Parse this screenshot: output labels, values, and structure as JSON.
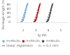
{
  "chart_data": {
    "type": "scatter",
    "xlabel": "lg (N)",
    "ylabel": "Damage length (mm)",
    "xlim": [
      1.5,
      5.5
    ],
    "ylim": [
      -2,
      88
    ],
    "xticks": [
      2,
      3,
      4,
      5
    ],
    "yticks": [
      0,
      20,
      40,
      60,
      80
    ],
    "grid": false,
    "legend": "bottom",
    "series": [
      {
        "name": "e=4e₀/e₀",
        "color": "#6baed6",
        "marker": "square",
        "x": [
          1.9,
          1.95,
          2.0,
          2.02,
          2.05,
          2.08,
          2.1,
          2.12,
          2.15,
          2.18,
          2.2,
          2.22,
          2.25,
          2.27,
          2.3,
          2.32
        ],
        "values": [
          2,
          5,
          9,
          13,
          18,
          23,
          28,
          34,
          40,
          46,
          53,
          59,
          65,
          70,
          75,
          80
        ]
      },
      {
        "name": "e=4e₀/e₀",
        "color": "#cc0000",
        "marker": "square",
        "x": [
          2.9,
          2.95,
          3.0,
          3.02,
          3.05,
          3.08,
          3.1,
          3.12,
          3.15,
          3.18,
          3.2,
          3.22,
          3.25,
          3.27,
          3.3,
          3.32
        ],
        "values": [
          2,
          5,
          9,
          13,
          18,
          23,
          28,
          34,
          40,
          46,
          53,
          59,
          65,
          70,
          75,
          80
        ]
      },
      {
        "name": "e=6e₀/e₀",
        "color": "#404040",
        "marker": "square",
        "x": [
          3.9,
          3.95,
          4.0,
          4.02,
          4.05,
          4.08,
          4.1,
          4.12,
          4.15,
          4.18,
          4.2,
          4.22,
          4.25,
          4.27,
          4.3,
          4.32
        ],
        "values": [
          2,
          5,
          9,
          13,
          18,
          23,
          28,
          34,
          40,
          46,
          53,
          59,
          65,
          70,
          75,
          80
        ]
      },
      {
        "name": "linear regression",
        "type": "line",
        "color": "#555555",
        "line_style": "dashed",
        "x": [
          1.82,
          2.38
        ],
        "values": [
          -2,
          88
        ]
      },
      {
        "type": "line",
        "color": "#555555",
        "line_style": "dashed",
        "x": [
          2.82,
          3.38
        ],
        "values": [
          -2,
          88
        ]
      },
      {
        "type": "line",
        "color": "#555555",
        "line_style": "dashed",
        "x": [
          3.82,
          4.38
        ],
        "values": [
          -2,
          88
        ]
      }
    ],
    "annotations": [
      "e₀ = 0.1 mm"
    ]
  }
}
